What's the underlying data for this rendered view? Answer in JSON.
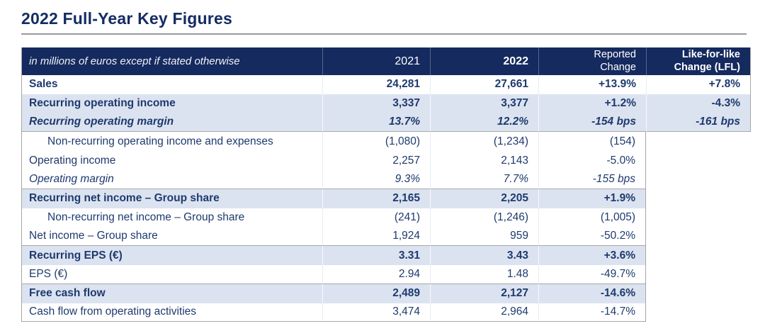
{
  "title": "2022 Full-Year Key Figures",
  "table": {
    "header": {
      "note": "in millions of euros except if stated otherwise",
      "y2021": "2021",
      "y2022": "2022",
      "reported_line1": "Reported",
      "reported_line2": "Change",
      "lfl_line1": "Like-for-like",
      "lfl_line2": "Change (LFL)"
    },
    "rows": [
      {
        "label": "Sales",
        "y2021": "24,281",
        "y2022": "27,661",
        "reported": "+13.9%",
        "lfl": "+7.8%",
        "bold": true,
        "italic": false,
        "indent": false,
        "shaded": false,
        "sep": false,
        "sep_full": false,
        "lfl_active": true
      },
      {
        "label": "Recurring operating income",
        "y2021": "3,337",
        "y2022": "3,377",
        "reported": "+1.2%",
        "lfl": "-4.3%",
        "bold": true,
        "italic": false,
        "indent": false,
        "shaded": true,
        "sep": false,
        "sep_full": false,
        "lfl_active": true
      },
      {
        "label": "Recurring operating margin",
        "y2021": "13.7%",
        "y2022": "12.2%",
        "reported": "-154 bps",
        "lfl": "-161 bps",
        "bold": true,
        "italic": true,
        "indent": false,
        "shaded": true,
        "sep": false,
        "sep_full": true,
        "lfl_active": true
      },
      {
        "label": "Non-recurring operating income and expenses",
        "y2021": "(1,080)",
        "y2022": "(1,234)",
        "reported": "(154)",
        "lfl": "",
        "bold": false,
        "italic": false,
        "indent": true,
        "shaded": false,
        "sep": false,
        "sep_full": false,
        "lfl_active": false
      },
      {
        "label": "Operating income",
        "y2021": "2,257",
        "y2022": "2,143",
        "reported": "-5.0%",
        "lfl": "",
        "bold": false,
        "italic": false,
        "indent": false,
        "shaded": false,
        "sep": false,
        "sep_full": false,
        "lfl_active": false
      },
      {
        "label": "Operating margin",
        "y2021": "9.3%",
        "y2022": "7.7%",
        "reported": "-155 bps",
        "lfl": "",
        "bold": false,
        "italic": true,
        "indent": false,
        "shaded": false,
        "sep": true,
        "sep_full": false,
        "lfl_active": false
      },
      {
        "label": "Recurring net income – Group share",
        "y2021": "2,165",
        "y2022": "2,205",
        "reported": "+1.9%",
        "lfl": "",
        "bold": true,
        "italic": false,
        "indent": false,
        "shaded": true,
        "sep": false,
        "sep_full": false,
        "lfl_active": false
      },
      {
        "label": "Non-recurring net income – Group share",
        "y2021": "(241)",
        "y2022": "(1,246)",
        "reported": "(1,005)",
        "lfl": "",
        "bold": false,
        "italic": false,
        "indent": true,
        "shaded": false,
        "sep": false,
        "sep_full": false,
        "lfl_active": false
      },
      {
        "label": "Net income – Group share",
        "y2021": "1,924",
        "y2022": "959",
        "reported": "-50.2%",
        "lfl": "",
        "bold": false,
        "italic": false,
        "indent": false,
        "shaded": false,
        "sep": true,
        "sep_full": false,
        "lfl_active": false
      },
      {
        "label": "Recurring EPS (€)",
        "y2021": "3.31",
        "y2022": "3.43",
        "reported": "+3.6%",
        "lfl": "",
        "bold": true,
        "italic": false,
        "indent": false,
        "shaded": true,
        "sep": false,
        "sep_full": false,
        "lfl_active": false
      },
      {
        "label": "EPS (€)",
        "y2021": "2.94",
        "y2022": "1.48",
        "reported": "-49.7%",
        "lfl": "",
        "bold": false,
        "italic": false,
        "indent": false,
        "shaded": false,
        "sep": true,
        "sep_full": false,
        "lfl_active": false
      },
      {
        "label": "Free cash flow",
        "y2021": "2,489",
        "y2022": "2,127",
        "reported": "-14.6%",
        "lfl": "",
        "bold": true,
        "italic": false,
        "indent": false,
        "shaded": true,
        "sep": false,
        "sep_full": false,
        "lfl_active": false
      },
      {
        "label": "Cash flow from operating activities",
        "y2021": "3,474",
        "y2022": "2,964",
        "reported": "-14.7%",
        "lfl": "",
        "bold": false,
        "italic": false,
        "indent": false,
        "shaded": false,
        "sep": true,
        "sep_full": false,
        "lfl_active": false
      }
    ]
  },
  "colors": {
    "header_navy": "#152a5e",
    "shaded_row_blue": "#dce3f0",
    "text_navy": "#1e3a6e",
    "title_navy": "#142c63",
    "border_gray": "#a6a6a6"
  }
}
